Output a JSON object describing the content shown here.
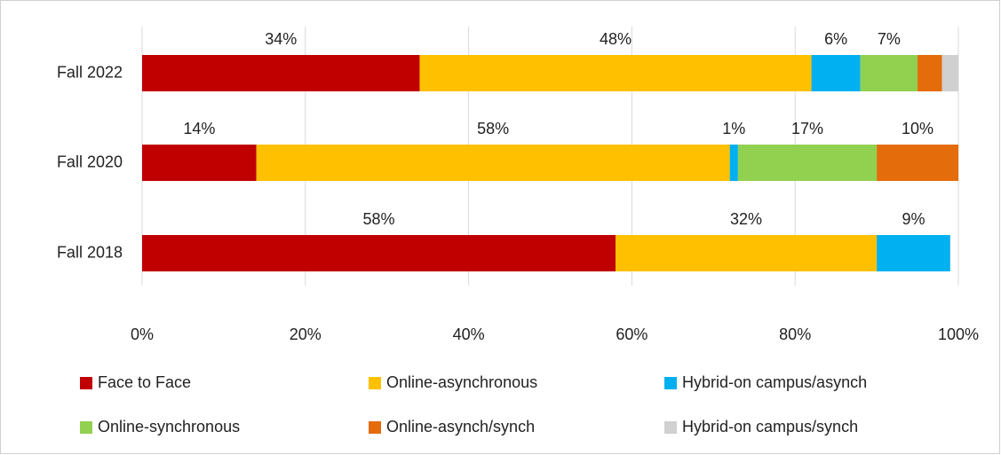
{
  "chart_data": {
    "type": "stacked-bar-horizontal",
    "categories": [
      "Fall 2022",
      "Fall 2020",
      "Fall 2018"
    ],
    "series": [
      {
        "name": "Face to Face",
        "color": "#c00000",
        "values": [
          34,
          14,
          58
        ],
        "value_labels": [
          "34%",
          "14%",
          "58%"
        ]
      },
      {
        "name": "Online-asynchronous",
        "color": "#ffc000",
        "values": [
          48,
          58,
          32
        ],
        "value_labels": [
          "48%",
          "58%",
          "32%"
        ]
      },
      {
        "name": "Hybrid-on campus/asynch",
        "color": "#00b0f0",
        "values": [
          6,
          1,
          9
        ],
        "value_labels": [
          "6%",
          "1%",
          "9%"
        ]
      },
      {
        "name": "Online-synchronous",
        "color": "#92d050",
        "values": [
          7,
          17,
          null
        ],
        "value_labels": [
          "7%",
          "17%",
          null
        ]
      },
      {
        "name": "Online-asynch/synch",
        "color": "#e46c0a",
        "values": [
          3,
          10,
          null
        ],
        "value_labels": [
          null,
          "10%",
          null
        ]
      },
      {
        "name": "Hybrid-on campus/synch",
        "color": "#d0d0d0",
        "values": [
          2,
          null,
          null
        ],
        "value_labels": [
          null,
          null,
          null
        ]
      }
    ],
    "xlim": [
      0,
      100
    ],
    "xticks": [
      {
        "value": 0,
        "label": "0%"
      },
      {
        "value": 20,
        "label": "20%"
      },
      {
        "value": 40,
        "label": "40%"
      },
      {
        "value": 60,
        "label": "60%"
      },
      {
        "value": 80,
        "label": "80%"
      },
      {
        "value": 100,
        "label": "100%"
      }
    ],
    "grid": true
  }
}
